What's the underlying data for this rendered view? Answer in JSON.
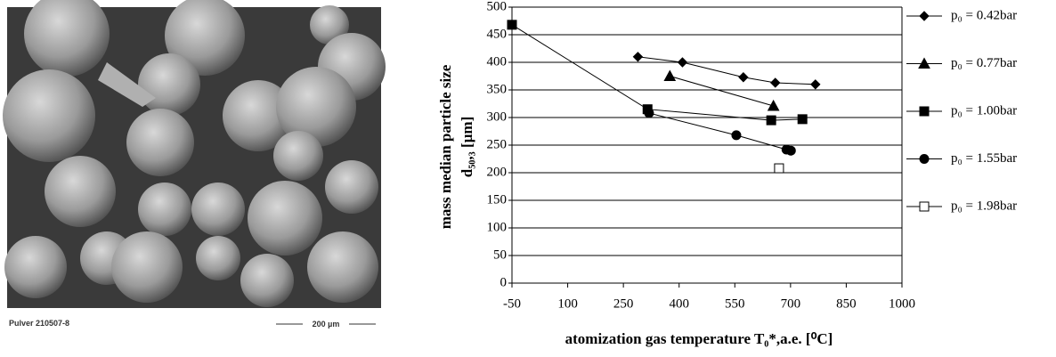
{
  "image": {
    "caption": "Pulver 210507-8",
    "scale": "200 µm"
  },
  "chart_data": {
    "type": "line",
    "xlabel": "atomization gas temperature T₀*,a.e. [⁰C]",
    "ylabel": [
      "mass median particle size",
      "d₅₀,₃ [µm]"
    ],
    "xlim": [
      -50,
      1000
    ],
    "xticks": [
      -50,
      100,
      250,
      400,
      550,
      700,
      850,
      1000
    ],
    "ylim": [
      0,
      500
    ],
    "yticks": [
      0,
      50,
      100,
      150,
      200,
      250,
      300,
      350,
      400,
      450,
      500
    ],
    "grid": true,
    "legend": "right",
    "series": [
      {
        "name": "p₀ = 0.42bar",
        "marker": "diamond",
        "color": "#000000",
        "facecolor": "#000000",
        "x": [
          289,
          409,
          573,
          659,
          767
        ],
        "values": [
          410,
          400,
          373,
          363,
          360
        ]
      },
      {
        "name": "p₀ = 0.77bar",
        "marker": "triangle",
        "color": "#000000",
        "facecolor": "#000000",
        "x": [
          375,
          654
        ],
        "values": [
          375,
          321
        ]
      },
      {
        "name": "p₀ = 1.00bar",
        "marker": "square",
        "color": "#000000",
        "facecolor": "#000000",
        "x": [
          -50,
          315,
          648,
          732
        ],
        "values": [
          468,
          315,
          295,
          297
        ]
      },
      {
        "name": "p₀ = 1.55bar",
        "marker": "circle",
        "color": "#000000",
        "facecolor": "#000000",
        "x": [
          319,
          554,
          689,
          701
        ],
        "values": [
          308,
          268,
          242,
          240
        ]
      },
      {
        "name": "p₀ = 1.98bar",
        "marker": "square",
        "color": "#000000",
        "facecolor": "#ffffff",
        "x": [
          669
        ],
        "values": [
          208
        ]
      }
    ]
  }
}
